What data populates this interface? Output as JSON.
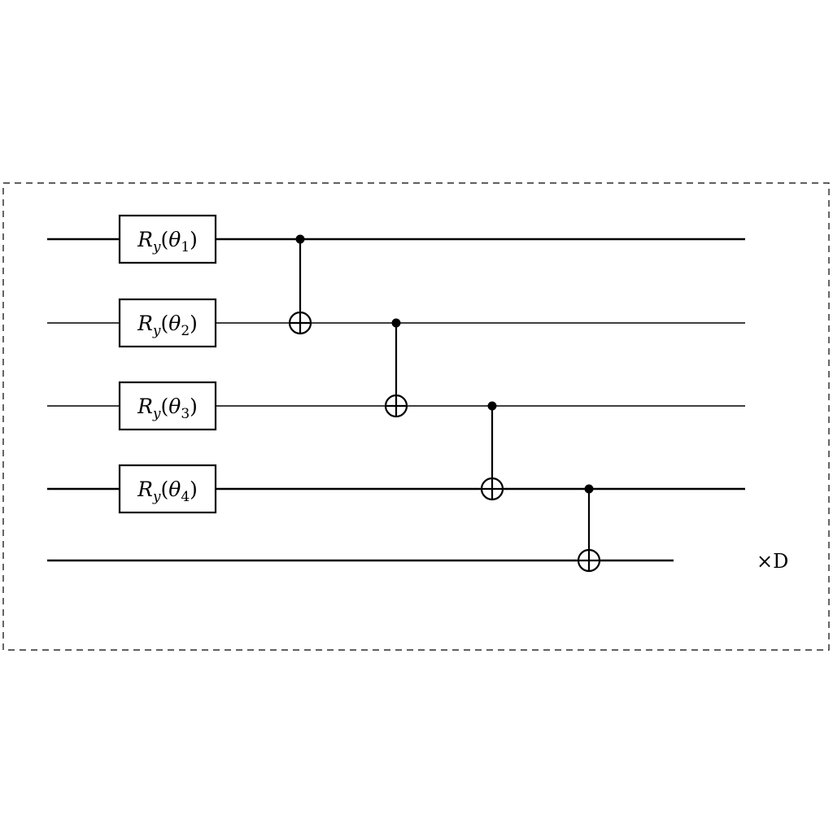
{
  "circuit": {
    "wires": [
      {
        "id": "q1"
      },
      {
        "id": "q2"
      },
      {
        "id": "q3"
      },
      {
        "id": "q4"
      },
      {
        "id": "q5"
      }
    ],
    "gates": [
      {
        "type": "Ry",
        "wire": 0,
        "name": "R",
        "subscript": "y",
        "param": "θ",
        "param_index": "1"
      },
      {
        "type": "Ry",
        "wire": 1,
        "name": "R",
        "subscript": "y",
        "param": "θ",
        "param_index": "2"
      },
      {
        "type": "Ry",
        "wire": 2,
        "name": "R",
        "subscript": "y",
        "param": "θ",
        "param_index": "3"
      },
      {
        "type": "Ry",
        "wire": 3,
        "name": "R",
        "subscript": "y",
        "param": "θ",
        "param_index": "4"
      }
    ],
    "cnots": [
      {
        "control": 0,
        "target": 1
      },
      {
        "control": 1,
        "target": 2
      },
      {
        "control": 2,
        "target": 3
      },
      {
        "control": 3,
        "target": 4
      }
    ],
    "repeat_label": "×D"
  }
}
